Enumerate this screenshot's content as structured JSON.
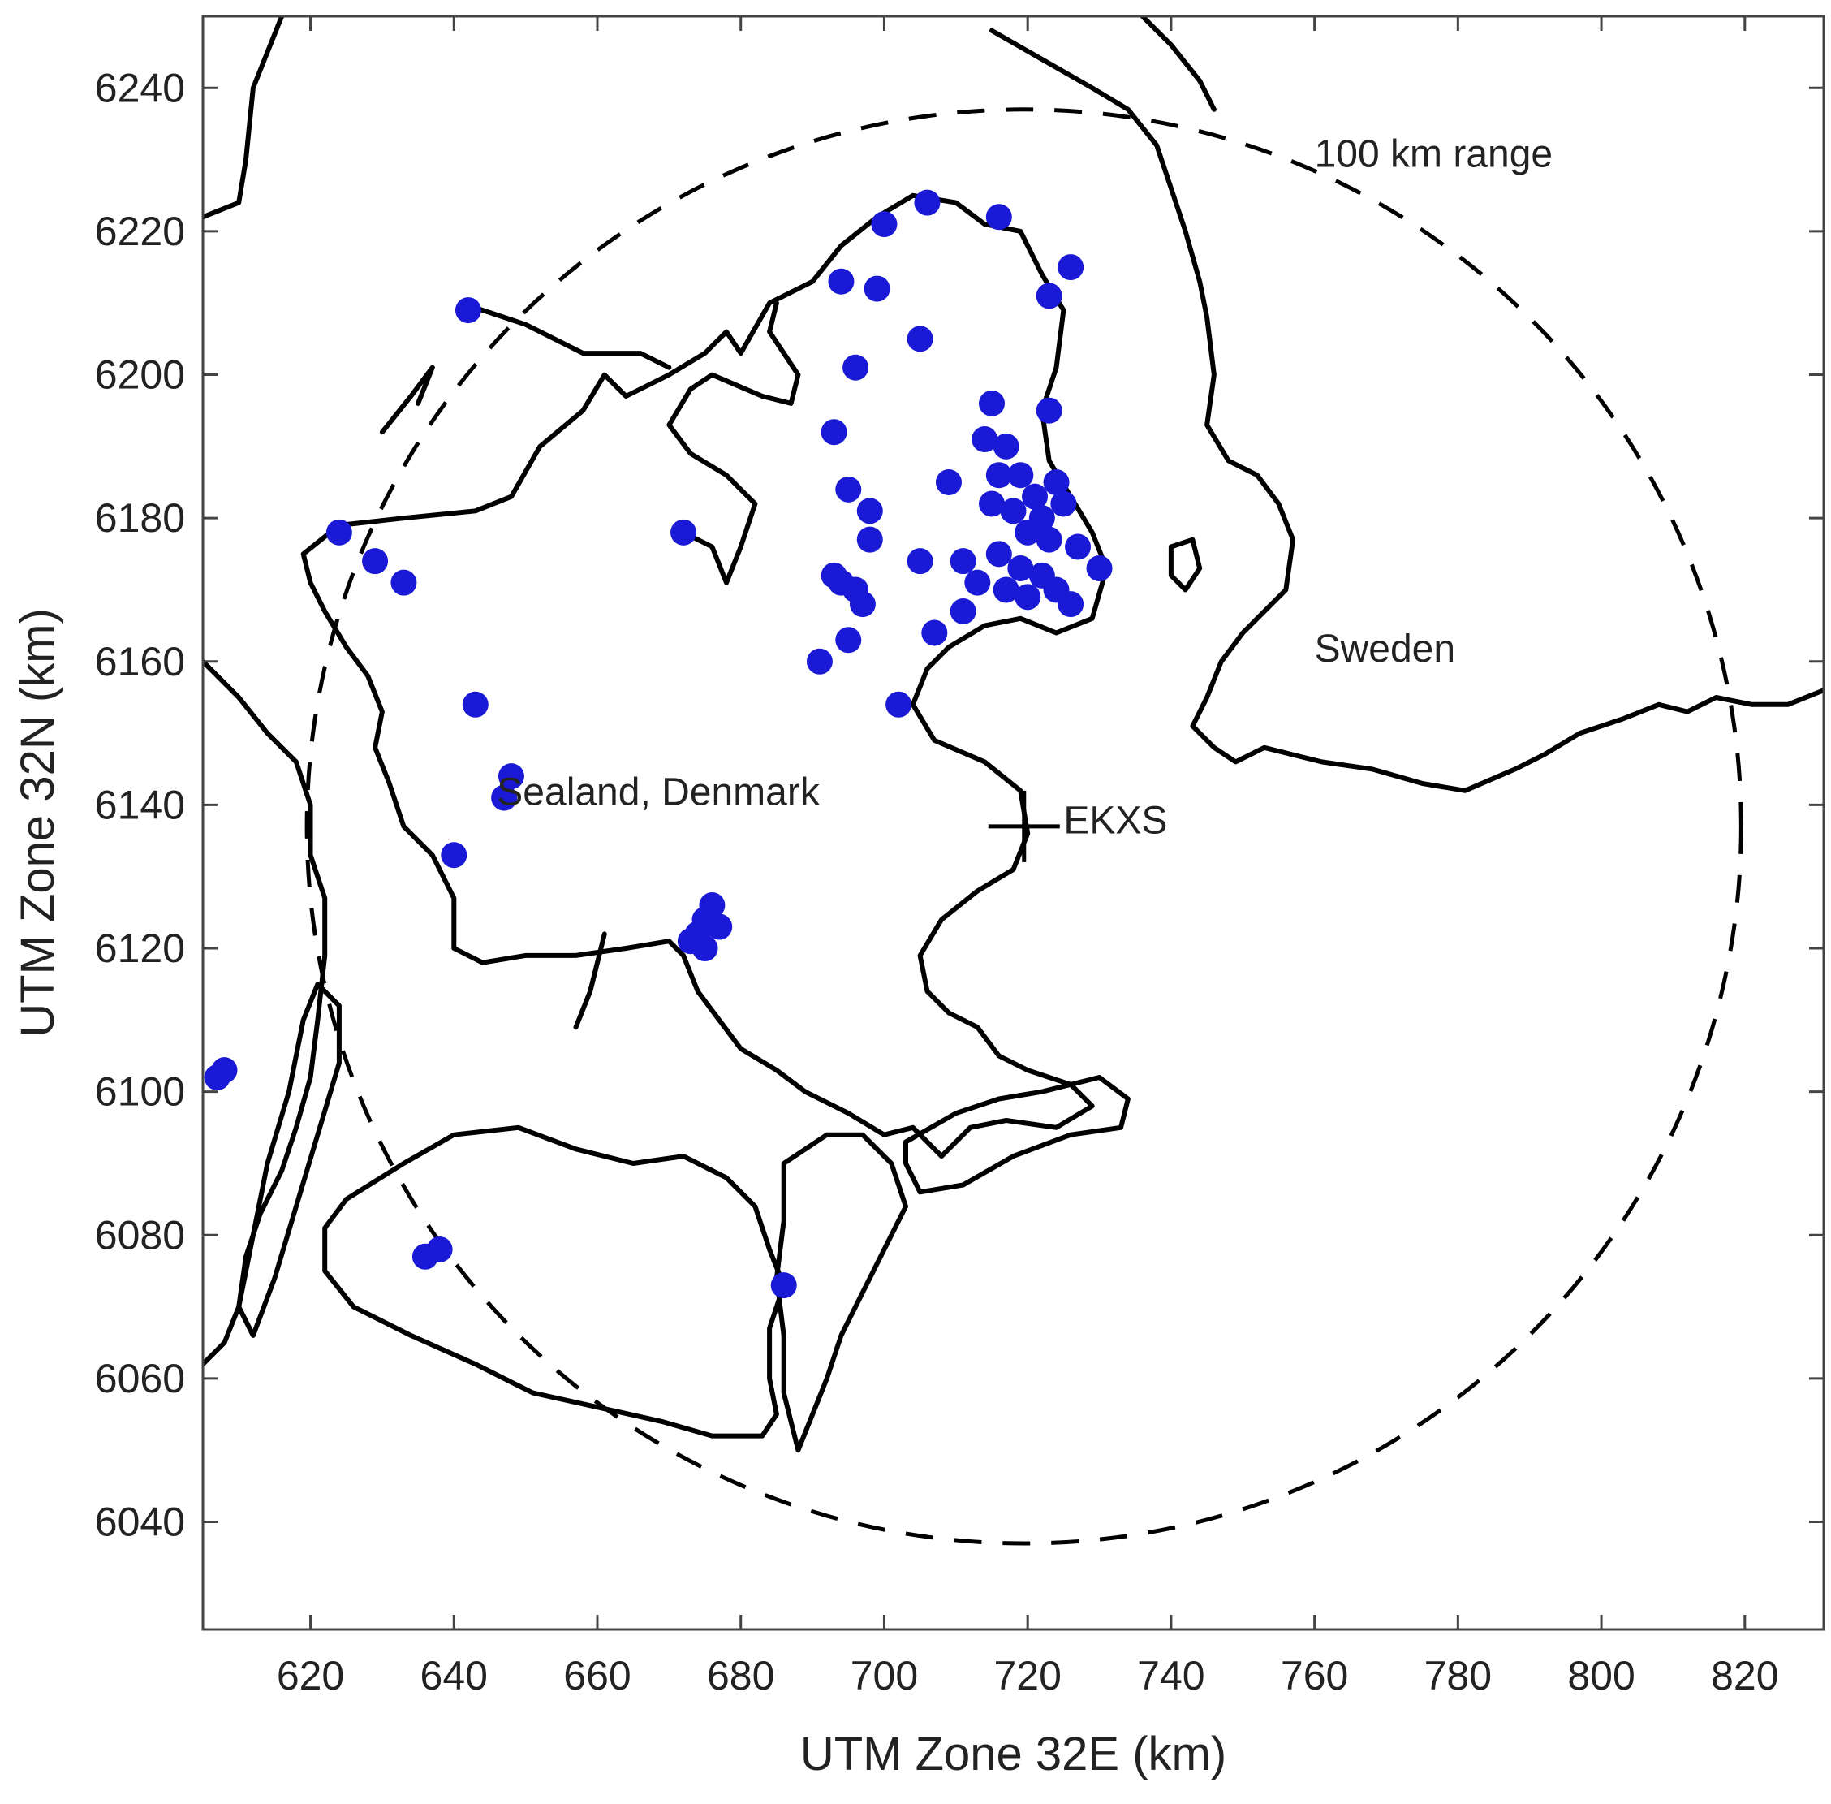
{
  "chart_data": {
    "type": "scatter",
    "xlabel": "UTM Zone 32E (km)",
    "ylabel": "UTM Zone 32N (km)",
    "xlim": [
      605,
      831
    ],
    "ylim": [
      6025,
      6250
    ],
    "xticks": [
      620,
      640,
      660,
      680,
      700,
      720,
      740,
      760,
      780,
      800,
      820
    ],
    "yticks": [
      6040,
      6060,
      6080,
      6100,
      6120,
      6140,
      6160,
      6180,
      6200,
      6220,
      6240
    ],
    "marker_color": "#1a1ad6",
    "line_color": "#000000",
    "radar": {
      "label": "EKXS",
      "x": 719.5,
      "y": 6137
    },
    "range_ring": {
      "label": "100 km range",
      "radius_km": 100,
      "style": "dashed"
    },
    "annotations": [
      {
        "text": "Sealand, Denmark",
        "x": 646,
        "y": 6140
      },
      {
        "text": "Sweden",
        "x": 760,
        "y": 6160
      },
      {
        "text": "100 km range",
        "x": 760,
        "y": 6229
      },
      {
        "text": "EKXS",
        "x": 725,
        "y": 6136
      }
    ],
    "points": [
      [
        642,
        6209
      ],
      [
        672,
        6178
      ],
      [
        624,
        6178
      ],
      [
        629,
        6174
      ],
      [
        633,
        6171
      ],
      [
        643,
        6154
      ],
      [
        648,
        6144
      ],
      [
        647,
        6141
      ],
      [
        640,
        6133
      ],
      [
        706,
        6224
      ],
      [
        716,
        6222
      ],
      [
        700,
        6221
      ],
      [
        726,
        6215
      ],
      [
        694,
        6213
      ],
      [
        699,
        6212
      ],
      [
        723,
        6211
      ],
      [
        705,
        6205
      ],
      [
        696,
        6201
      ],
      [
        715,
        6196
      ],
      [
        723,
        6195
      ],
      [
        693,
        6192
      ],
      [
        714,
        6191
      ],
      [
        717,
        6190
      ],
      [
        716,
        6186
      ],
      [
        709,
        6185
      ],
      [
        695,
        6184
      ],
      [
        698,
        6181
      ],
      [
        719,
        6186
      ],
      [
        721,
        6183
      ],
      [
        724,
        6185
      ],
      [
        722,
        6180
      ],
      [
        725,
        6182
      ],
      [
        720,
        6178
      ],
      [
        718,
        6181
      ],
      [
        715,
        6182
      ],
      [
        723,
        6177
      ],
      [
        698,
        6177
      ],
      [
        727,
        6176
      ],
      [
        730,
        6173
      ],
      [
        705,
        6174
      ],
      [
        711,
        6174
      ],
      [
        716,
        6175
      ],
      [
        719,
        6173
      ],
      [
        722,
        6172
      ],
      [
        717,
        6170
      ],
      [
        713,
        6171
      ],
      [
        720,
        6169
      ],
      [
        724,
        6170
      ],
      [
        711,
        6167
      ],
      [
        694,
        6171
      ],
      [
        696,
        6170
      ],
      [
        697,
        6168
      ],
      [
        693,
        6172
      ],
      [
        726,
        6168
      ],
      [
        707,
        6164
      ],
      [
        695,
        6163
      ],
      [
        691,
        6160
      ],
      [
        702,
        6154
      ],
      [
        675,
        6124
      ],
      [
        676,
        6126
      ],
      [
        674,
        6122
      ],
      [
        677,
        6123
      ],
      [
        675,
        6120
      ],
      [
        673,
        6121
      ],
      [
        607,
        6102
      ],
      [
        608,
        6103
      ],
      [
        638,
        6078
      ],
      [
        636,
        6077
      ],
      [
        686,
        6073
      ]
    ]
  }
}
